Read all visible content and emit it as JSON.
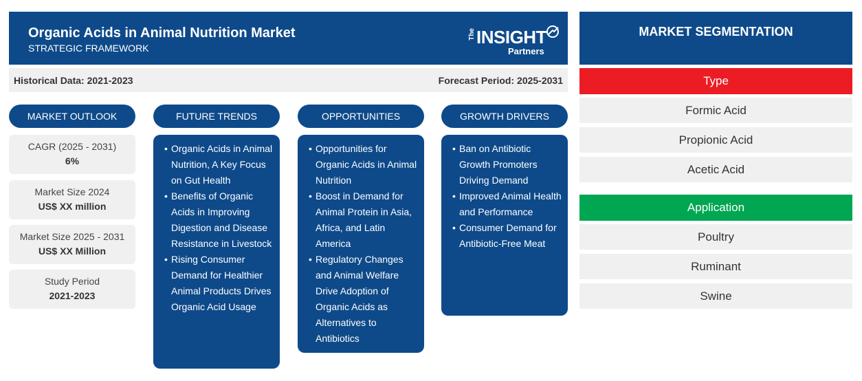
{
  "header": {
    "title": "Organic Acids in Animal Nutrition Market",
    "subtitle": "STRATEGIC FRAMEWORK",
    "logo": {
      "the": "The",
      "insight": "INSIGHT",
      "partners": "Partners"
    }
  },
  "dates": {
    "historical": "Historical Data: 2021-2023",
    "forecast": "Forecast Period: 2025-2031"
  },
  "columns": {
    "outlook": "MARKET OUTLOOK",
    "trends": "FUTURE TRENDS",
    "opportunities": "OPPORTUNITIES",
    "drivers": "GROWTH DRIVERS"
  },
  "outlook": [
    {
      "label": "CAGR (2025 - 2031)",
      "value": "6%"
    },
    {
      "label": "Market Size 2024",
      "value": "US$ XX million"
    },
    {
      "label": "Market Size 2025 - 2031",
      "value": "US$ XX Million"
    },
    {
      "label": "Study Period",
      "value": "2021-2023"
    }
  ],
  "trends": [
    "Organic Acids in Animal Nutrition, A Key Focus on Gut Health",
    "Benefits of Organic Acids in Improving Digestion and Disease Resistance in Livestock",
    "Rising Consumer Demand for Healthier Animal Products Drives Organic Acid Usage"
  ],
  "opportunities": [
    "Opportunities for Organic Acids in Animal Nutrition",
    "Boost in Demand for Animal Protein in Asia, Africa, and Latin America",
    "Regulatory Changes and Animal Welfare Drive Adoption of Organic Acids as Alternatives to Antibiotics"
  ],
  "drivers": [
    "Ban on Antibiotic Growth Promoters Driving Demand",
    "Improved Animal Health and Performance",
    "Consumer Demand for Antibiotic-Free Meat"
  ],
  "segmentation": {
    "title": "MARKET SEGMENTATION",
    "type": {
      "label": "Type",
      "color": "#ec1c24",
      "items": [
        "Formic Acid",
        "Propionic Acid",
        "Acetic Acid"
      ]
    },
    "application": {
      "label": "Application",
      "color": "#00a651",
      "items": [
        "Poultry",
        "Ruminant",
        "Swine"
      ]
    }
  },
  "colors": {
    "primary": "#0e4a8a",
    "panel": "#f0f0f0"
  }
}
